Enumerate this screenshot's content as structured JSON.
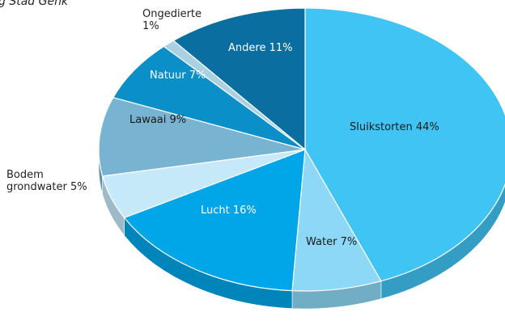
{
  "chart_data": {
    "type": "pie3d",
    "title": "g Stad Genk",
    "categories": [
      "Sluikstorten",
      "Water",
      "Lucht",
      "Bodem grondwater",
      "Lawaai",
      "Natuur",
      "Ongedierte",
      "Andere"
    ],
    "values": [
      44,
      7,
      16,
      5,
      9,
      7,
      1,
      11
    ],
    "value_labels": [
      "44%",
      "7%",
      "16%",
      "5%",
      "9%",
      "7%",
      "1%",
      "11%"
    ],
    "colors": [
      "#40c4f4",
      "#8dd8f6",
      "#00a6e8",
      "#c6e9fa",
      "#78b4d2",
      "#0a8fc9",
      "#aad0e4",
      "#0a6fa0"
    ]
  }
}
